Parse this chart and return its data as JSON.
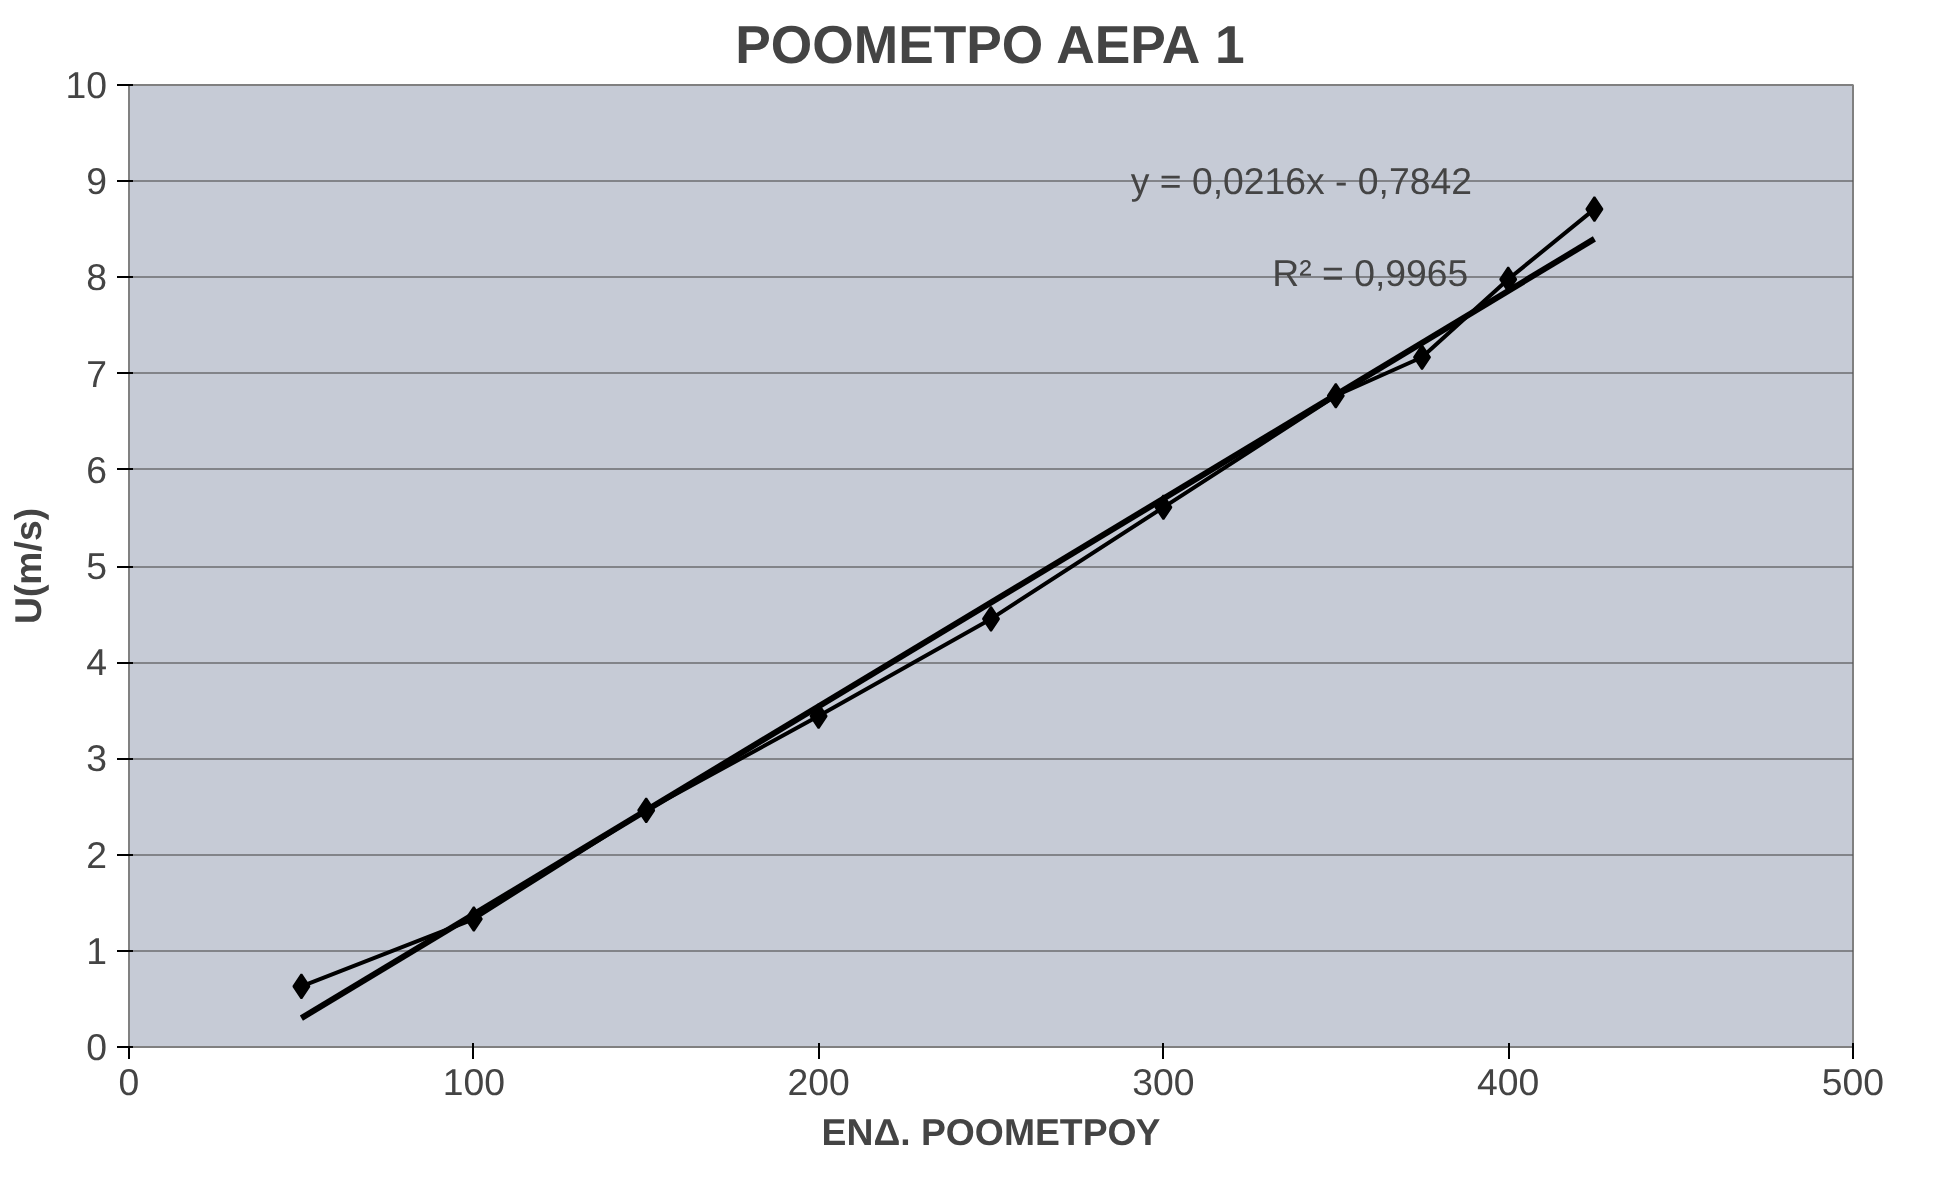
{
  "chart_data": {
    "type": "line",
    "title": "ΡΟΟΜΕΤΡΟ ΑΕΡΑ 1",
    "xlabel": "ΕΝΔ. ΡΟΟΜΕΤΡΟΥ",
    "ylabel": "U(m/s)",
    "xlim": [
      0,
      500
    ],
    "xticks": [
      0,
      100,
      200,
      300,
      400,
      500
    ],
    "ylim": [
      0,
      10
    ],
    "yticks": [
      0,
      1,
      2,
      3,
      4,
      5,
      6,
      7,
      8,
      9,
      10
    ],
    "grid": "y",
    "marker": "diamond",
    "line_style": "solid",
    "annotations": [
      "y = 0,0216x - 0,7842",
      "R² = 0,9965"
    ],
    "series": [
      {
        "color": "#000000",
        "x": [
          50,
          100,
          150,
          200,
          250,
          300,
          350,
          375,
          400,
          425
        ],
        "values": [
          0.63,
          1.33,
          2.46,
          3.44,
          4.45,
          5.61,
          6.77,
          7.17,
          7.98,
          8.71
        ]
      },
      {
        "color": "#000000",
        "marker": "none",
        "x": [
          50,
          425
        ],
        "values": [
          0.3,
          8.4
        ]
      }
    ]
  }
}
